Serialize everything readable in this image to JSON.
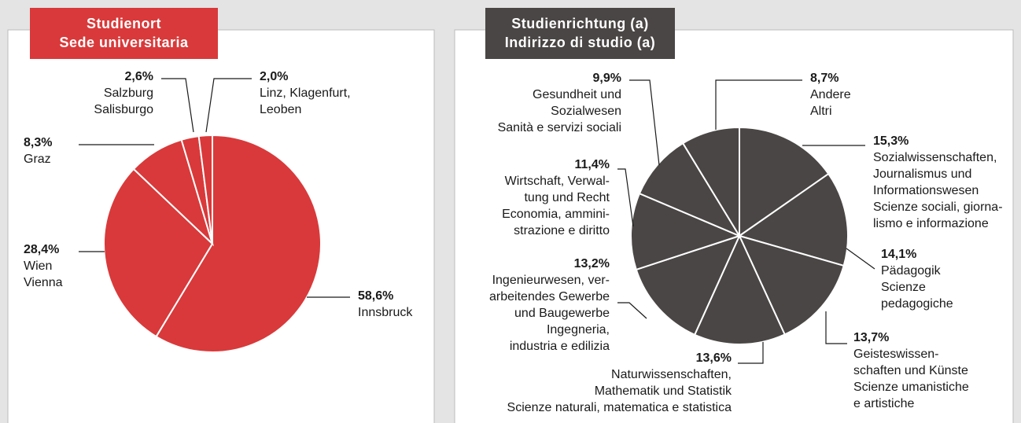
{
  "chart_data": [
    {
      "type": "pie",
      "title": [
        "Studienort",
        "Sede universitaria"
      ],
      "color": "#d9393a",
      "title_color": "#d9393a",
      "categories": [
        [
          "Innsbruck"
        ],
        [
          "Wien",
          "Vienna"
        ],
        [
          "Graz"
        ],
        [
          "Salzburg",
          "Salisburgo"
        ],
        [
          "Linz, Klagenfurt,",
          "Leoben"
        ]
      ],
      "values": [
        58.6,
        28.4,
        8.3,
        2.6,
        2.0
      ],
      "value_labels": [
        "58,6%",
        "28,4%",
        "8,3%",
        "2,6%",
        "2,0%"
      ]
    },
    {
      "type": "pie",
      "title": [
        "Studienrichtung (a)",
        "Indirizzo di studio (a)"
      ],
      "color": "#4a4645",
      "title_color": "#4a4645",
      "categories": [
        [
          "Sozialwissenschaften,",
          "Journalismus und",
          "Informationswesen",
          "Scienze sociali, giorna-",
          "lismo e informazione"
        ],
        [
          "Pädagogik",
          "Scienze",
          "pedagogiche"
        ],
        [
          "Geisteswissen-",
          "schaften und Künste",
          "Scienze umanistiche",
          "e artistiche"
        ],
        [
          "Naturwissenschaften,",
          "Mathematik und Statistik",
          "Scienze naturali, matematica e statistica"
        ],
        [
          "Ingenieurwesen, ver-",
          "arbeitendes Gewerbe",
          "und Baugewerbe",
          "Ingegneria,",
          "industria e edilizia"
        ],
        [
          "Wirtschaft, Verwal-",
          "tung und Recht",
          "Economia, ammini-",
          "strazione e diritto"
        ],
        [
          "Gesundheit und",
          "Sozialwesen",
          "Sanità e servizi sociali"
        ],
        [
          "Andere",
          "Altri"
        ]
      ],
      "values": [
        15.3,
        14.1,
        13.7,
        13.6,
        13.2,
        11.4,
        9.9,
        8.7
      ],
      "value_labels": [
        "15,3%",
        "14,1%",
        "13,7%",
        "13,6%",
        "13,2%",
        "11,4%",
        "9,9%",
        "8,7%"
      ]
    }
  ]
}
